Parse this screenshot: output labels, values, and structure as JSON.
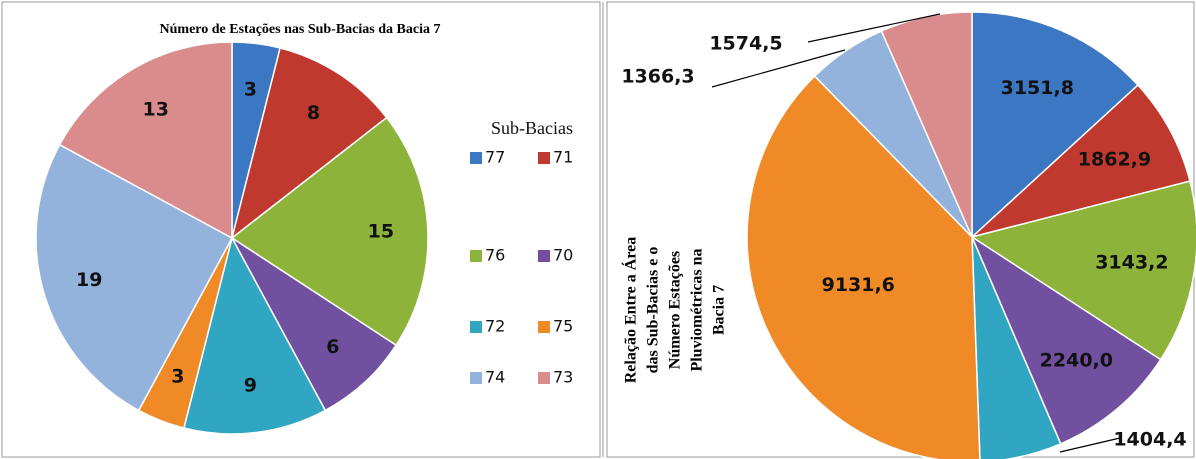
{
  "chart_data": [
    {
      "type": "pie",
      "title": "Número de Estações nas Sub-Bacias da Bacia 7",
      "legend_title": "Sub-Bacias",
      "categories": [
        "77",
        "71",
        "76",
        "70",
        "72",
        "75",
        "74",
        "73"
      ],
      "values": [
        3,
        8,
        15,
        6,
        9,
        3,
        19,
        13
      ],
      "colors": [
        "#3b77c2",
        "#c0392f",
        "#8db33a",
        "#7150a0",
        "#31a6c2",
        "#f08a26",
        "#93b3dc",
        "#d98c8b"
      ]
    },
    {
      "type": "pie",
      "title_lines": [
        "Relação Entre a Área",
        "das Sub-Bacias e o",
        "Número Estações",
        "Pluviométricas na",
        "Bacia 7"
      ],
      "values": [
        3151.8,
        1862.9,
        3143.2,
        2240.0,
        1404.4,
        9131.6,
        1366.3,
        1574.5
      ],
      "value_labels": [
        "3151,8",
        "1862,9",
        "3143,2",
        "2240,0",
        "1404,4",
        "9131,6",
        "1366,3",
        "1574,5"
      ],
      "colors": [
        "#3b77c2",
        "#c0392f",
        "#8db33a",
        "#7150a0",
        "#31a6c2",
        "#f08a26",
        "#93b3dc",
        "#d98c8b"
      ]
    }
  ]
}
